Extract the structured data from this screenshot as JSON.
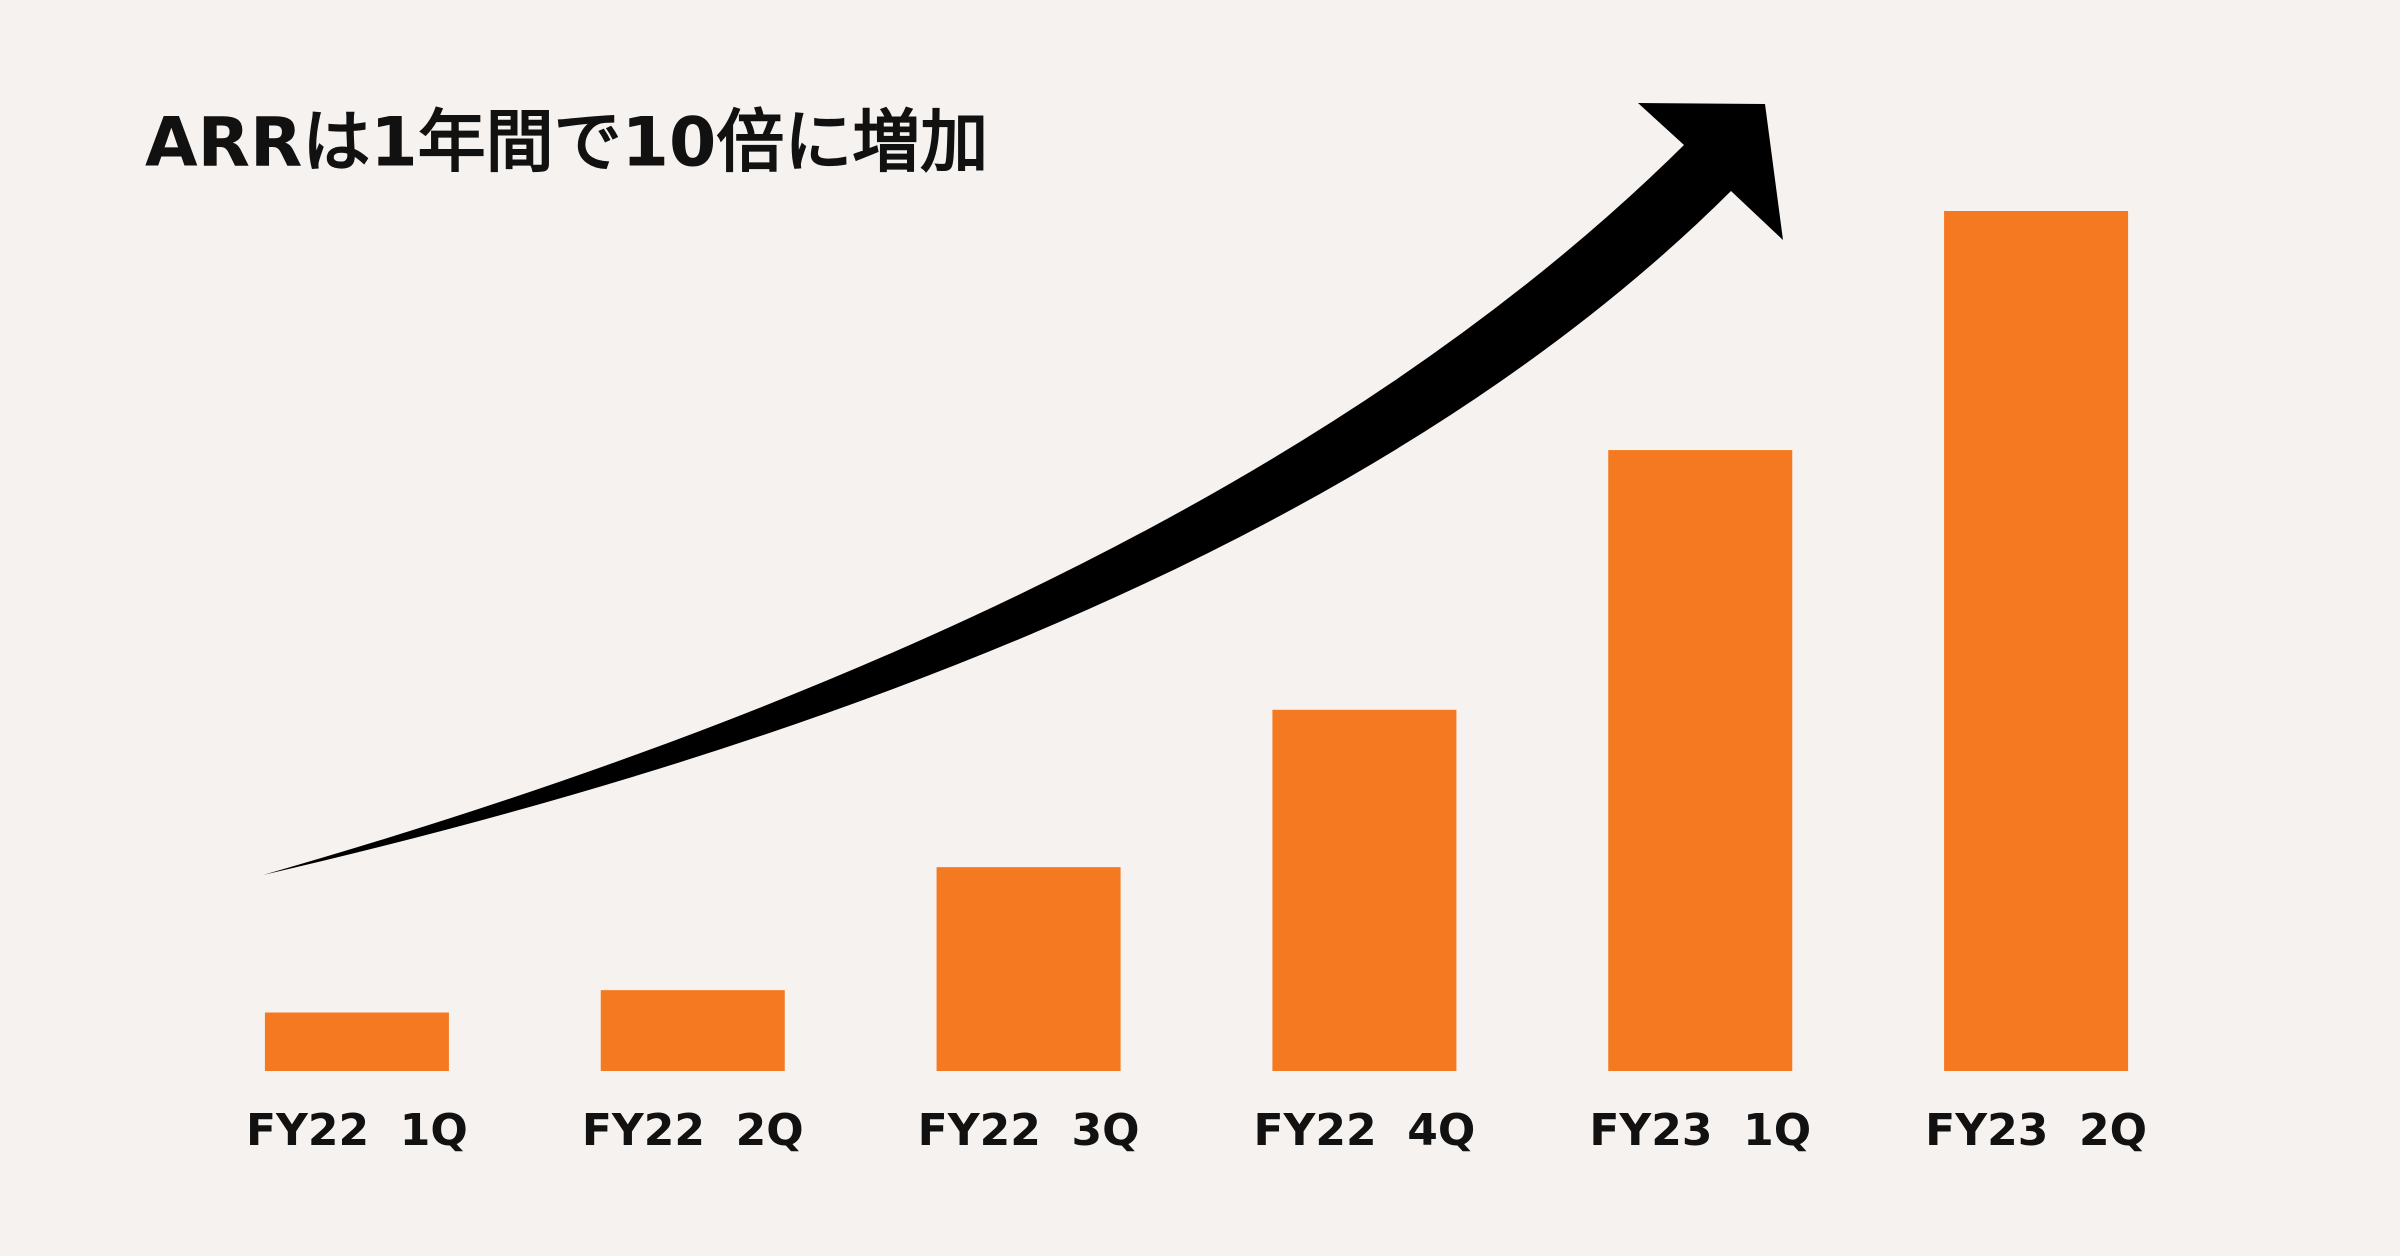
{
  "chart_data": {
    "type": "bar",
    "title": "ARRは1年間で10倍に増加",
    "categories": [
      "FY22  1Q",
      "FY22  2Q",
      "FY22  3Q",
      "FY22  4Q",
      "FY23  1Q",
      "FY23  2Q"
    ],
    "values": [
      6.8,
      9.4,
      23.7,
      42,
      72.2,
      100
    ],
    "color": "#f47920",
    "ylim": [
      0,
      100
    ]
  }
}
